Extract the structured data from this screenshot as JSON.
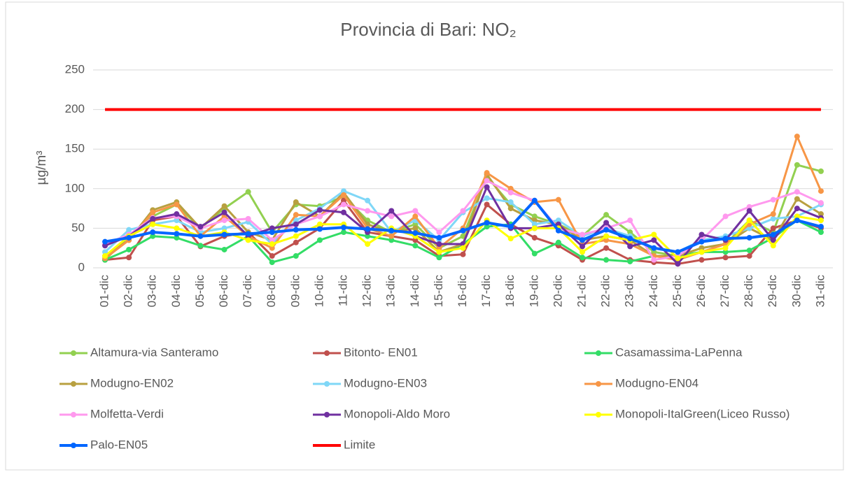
{
  "chart_data": {
    "type": "line",
    "title": "Provincia di Bari: NO₂",
    "y_label": "µg/m³",
    "categories": [
      "01-dic",
      "02-dic",
      "03-dic",
      "04-dic",
      "05-dic",
      "06-dic",
      "07-dic",
      "08-dic",
      "09-dic",
      "10-dic",
      "11-dic",
      "12-dic",
      "13-dic",
      "14-dic",
      "15-dic",
      "16-dic",
      "17-dic",
      "18-dic",
      "19-dic",
      "20-dic",
      "21-dic",
      "22-dic",
      "23-dic",
      "24-dic",
      "25-dic",
      "26-dic",
      "27-dic",
      "28-dic",
      "29-dic",
      "30-dic",
      "31-dic"
    ],
    "ylim": [
      0,
      250
    ],
    "yticks": [
      0,
      50,
      100,
      150,
      200,
      250
    ],
    "grid": true,
    "legend": "bottom",
    "series": [
      {
        "name": "Altamura-via Santeramo",
        "color": "#92d050",
        "width": 3,
        "markers": true,
        "values": [
          10,
          40,
          65,
          80,
          50,
          75,
          96,
          45,
          80,
          78,
          90,
          60,
          45,
          55,
          25,
          40,
          115,
          80,
          65,
          55,
          40,
          67,
          45,
          20,
          15,
          25,
          30,
          60,
          45,
          130,
          122
        ]
      },
      {
        "name": "Bitonto- EN01",
        "color": "#c0504d",
        "width": 3,
        "markers": true,
        "values": [
          10,
          13,
          60,
          65,
          27,
          40,
          45,
          15,
          32,
          50,
          85,
          45,
          40,
          35,
          15,
          17,
          80,
          55,
          38,
          28,
          10,
          25,
          10,
          7,
          5,
          10,
          13,
          15,
          50,
          60,
          50
        ]
      },
      {
        "name": "Casamassima-LaPenna",
        "color": "#33dd66",
        "width": 3,
        "markers": true,
        "values": [
          10,
          23,
          40,
          38,
          28,
          23,
          40,
          7,
          15,
          35,
          45,
          40,
          35,
          28,
          13,
          30,
          52,
          55,
          18,
          32,
          13,
          10,
          8,
          15,
          15,
          20,
          20,
          22,
          38,
          60,
          45
        ]
      },
      {
        "name": "Modugno-EN02",
        "color": "#b8a040",
        "width": 3,
        "markers": true,
        "values": [
          15,
          35,
          73,
          83,
          50,
          78,
          45,
          35,
          83,
          65,
          95,
          55,
          45,
          50,
          20,
          30,
          118,
          75,
          60,
          55,
          35,
          40,
          35,
          15,
          15,
          25,
          30,
          50,
          35,
          87,
          68
        ]
      },
      {
        "name": "Modugno-EN03",
        "color": "#7fd7f7",
        "width": 3,
        "markers": true,
        "values": [
          20,
          48,
          55,
          60,
          45,
          50,
          58,
          30,
          60,
          75,
          97,
          85,
          45,
          60,
          35,
          70,
          88,
          83,
          55,
          60,
          40,
          50,
          40,
          25,
          20,
          35,
          40,
          50,
          62,
          65,
          80
        ]
      },
      {
        "name": "Modugno-EN04",
        "color": "#f79646",
        "width": 3,
        "markers": true,
        "values": [
          12,
          35,
          70,
          80,
          40,
          65,
          40,
          25,
          67,
          65,
          92,
          50,
          40,
          65,
          25,
          50,
          120,
          100,
          83,
          86,
          30,
          35,
          30,
          15,
          10,
          20,
          30,
          55,
          68,
          166,
          97
        ]
      },
      {
        "name": "Molfetta-Verdi",
        "color": "#ff99ee",
        "width": 3,
        "markers": true,
        "values": [
          30,
          42,
          63,
          65,
          50,
          60,
          62,
          35,
          55,
          65,
          80,
          72,
          65,
          72,
          45,
          72,
          110,
          95,
          85,
          50,
          42,
          50,
          60,
          10,
          15,
          35,
          65,
          77,
          86,
          96,
          82
        ]
      },
      {
        "name": "Monopoli-Aldo Moro",
        "color": "#7030a0",
        "width": 3,
        "markers": true,
        "values": [
          28,
          40,
          62,
          68,
          52,
          70,
          40,
          50,
          55,
          73,
          70,
          45,
          72,
          40,
          30,
          30,
          102,
          50,
          50,
          55,
          27,
          57,
          27,
          35,
          5,
          42,
          35,
          72,
          35,
          75,
          63
        ]
      },
      {
        "name": "Monopoli-ItalGreen(Liceo Russo)",
        "color": "#ffff00",
        "width": 3,
        "markers": true,
        "values": [
          15,
          40,
          55,
          50,
          40,
          45,
          35,
          30,
          40,
          55,
          55,
          30,
          50,
          40,
          20,
          25,
          60,
          37,
          50,
          50,
          20,
          40,
          35,
          42,
          12,
          20,
          25,
          60,
          28,
          65,
          60
        ]
      },
      {
        "name": "Palo-EN05",
        "color": "#0066ff",
        "width": 4,
        "markers": true,
        "values": [
          33,
          38,
          45,
          43,
          40,
          42,
          43,
          45,
          48,
          49,
          51,
          49,
          47,
          44,
          38,
          47,
          57,
          52,
          85,
          47,
          35,
          48,
          37,
          25,
          20,
          33,
          37,
          38,
          42,
          60,
          52
        ]
      },
      {
        "name": "Limite",
        "color": "#ff0000",
        "width": 4,
        "markers": false,
        "values": [
          200,
          200,
          200,
          200,
          200,
          200,
          200,
          200,
          200,
          200,
          200,
          200,
          200,
          200,
          200,
          200,
          200,
          200,
          200,
          200,
          200,
          200,
          200,
          200,
          200,
          200,
          200,
          200,
          200,
          200,
          200
        ]
      }
    ]
  }
}
